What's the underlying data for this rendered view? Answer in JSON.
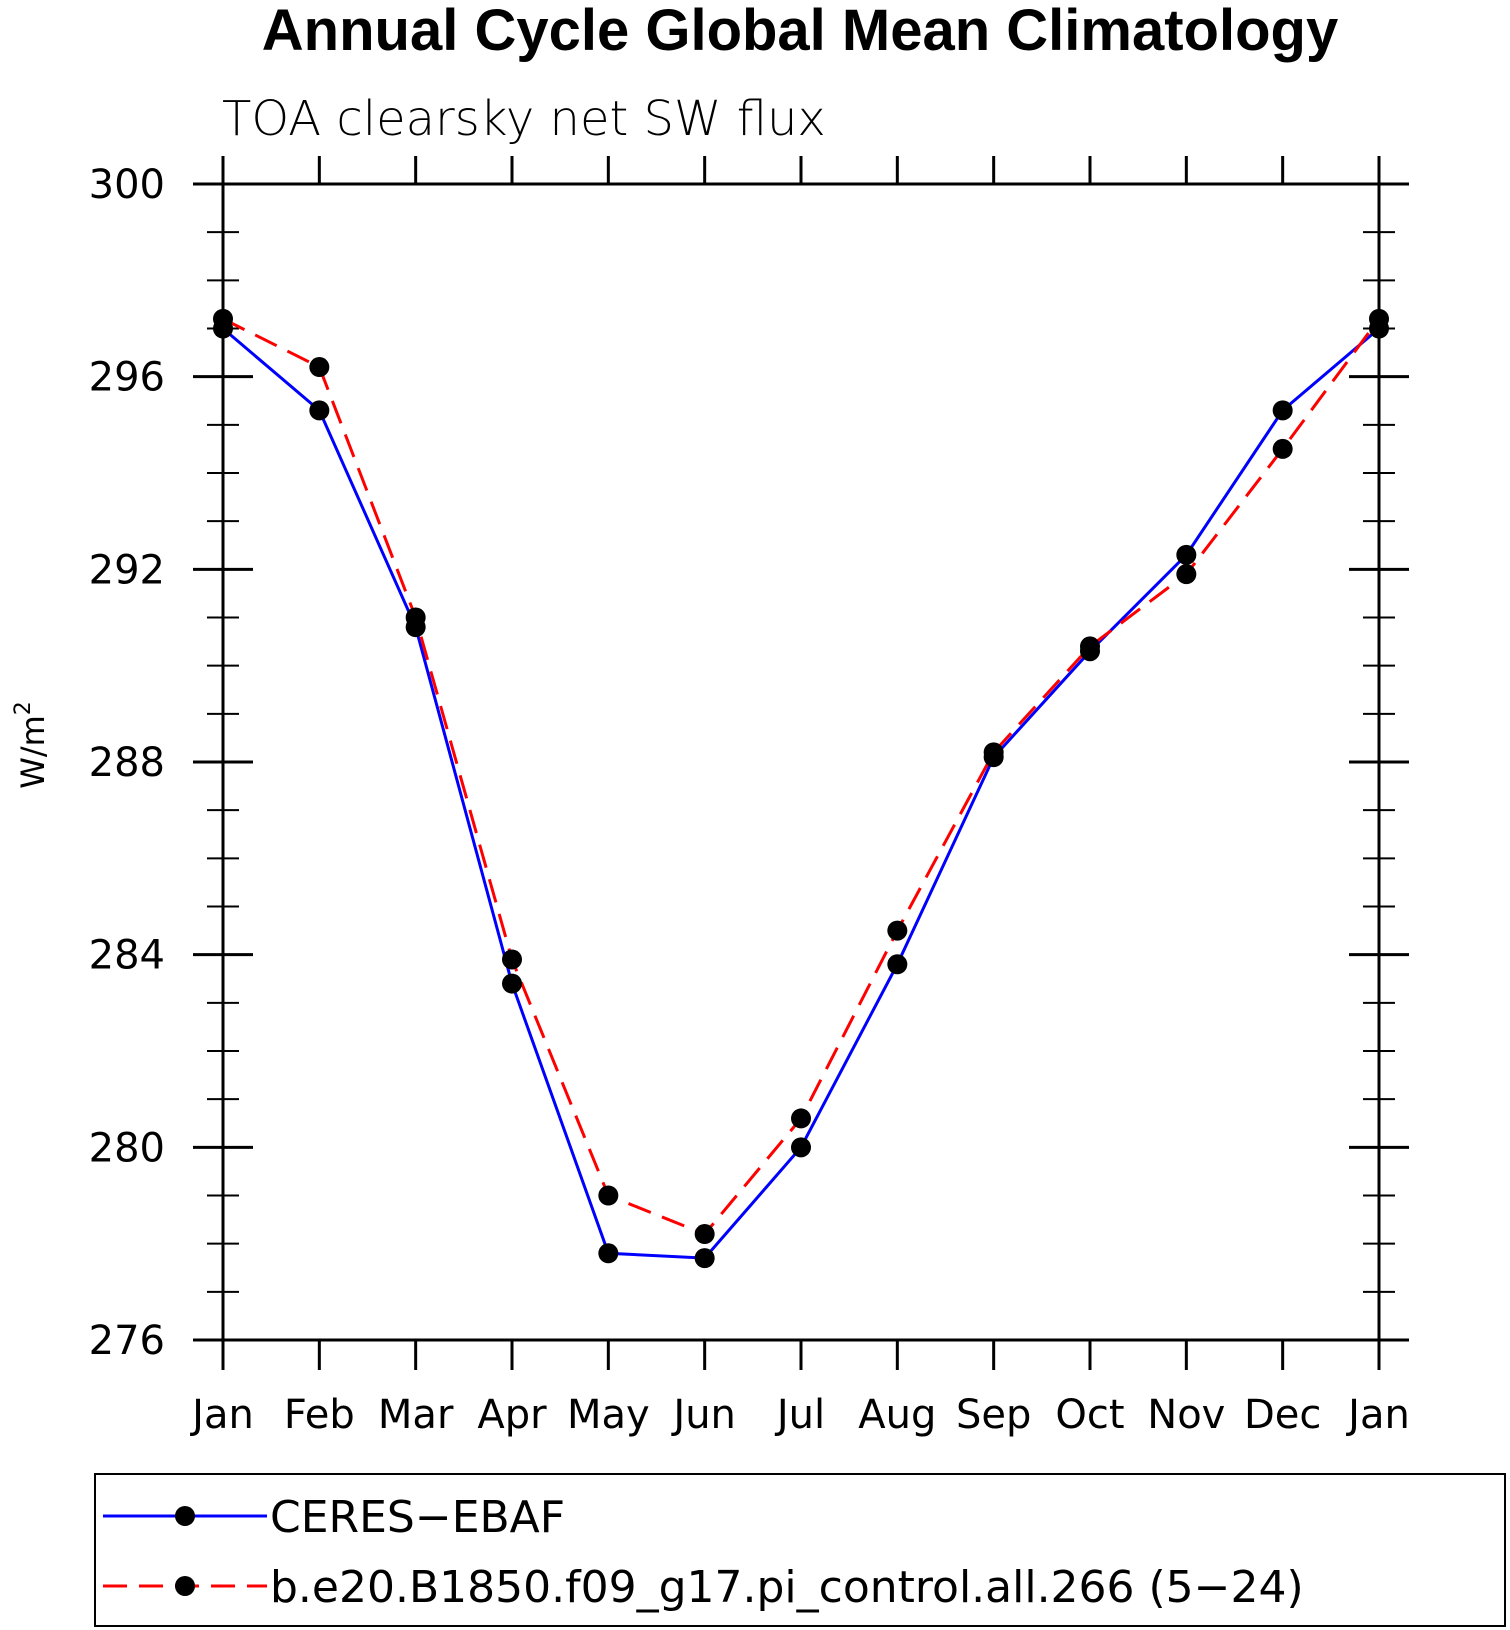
{
  "chart_data": {
    "type": "line",
    "title": "Annual Cycle Global Mean Climatology",
    "subtitle": "TOA clearsky net SW flux",
    "ylabel_base": "W/m",
    "ylabel_sup": "2",
    "xlabel": "",
    "categories": [
      "Jan",
      "Feb",
      "Mar",
      "Apr",
      "May",
      "Jun",
      "Jul",
      "Aug",
      "Sep",
      "Oct",
      "Nov",
      "Dec",
      "Jan"
    ],
    "ylim": [
      276,
      300
    ],
    "yticks": [
      "276",
      "280",
      "284",
      "288",
      "292",
      "296",
      "300"
    ],
    "grid": false,
    "legend_position": "bottom",
    "series": [
      {
        "name": "CERES−EBAF",
        "color": "#0000ff",
        "dash": "solid",
        "values": [
          297.0,
          295.3,
          290.8,
          283.4,
          277.8,
          277.7,
          280.0,
          283.8,
          288.1,
          290.3,
          292.3,
          295.3,
          297.0
        ]
      },
      {
        "name": "b.e20.B1850.f09_g17.pi_control.all.266 (5−24)",
        "color": "#ff0000",
        "dash": "dashed",
        "values": [
          297.2,
          296.2,
          291.0,
          283.9,
          279.0,
          278.2,
          280.6,
          284.5,
          288.2,
          290.4,
          291.9,
          294.5,
          297.2
        ]
      }
    ]
  }
}
